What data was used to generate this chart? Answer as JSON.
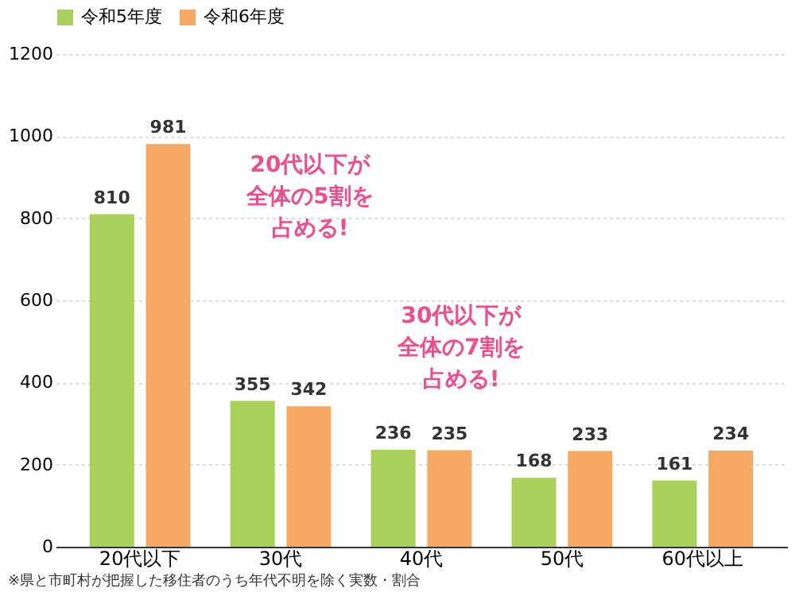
{
  "chart_data": {
    "type": "bar",
    "categories": [
      "20代以下",
      "30代",
      "40代",
      "50代",
      "60代以上"
    ],
    "series": [
      {
        "name": "令和5年度",
        "color": "#a8d05a",
        "values": [
          810,
          355,
          236,
          168,
          161
        ]
      },
      {
        "name": "令和6年度",
        "color": "#f5a965",
        "values": [
          981,
          342,
          235,
          233,
          234
        ]
      }
    ],
    "ylim": [
      0,
      1200
    ],
    "yticks": [
      0,
      200,
      400,
      600,
      800,
      1000,
      1200
    ],
    "grid": "y",
    "legend": "top",
    "data_labels": true,
    "annotations": [
      "20代以下が全体の5割を占める!",
      "30代以下が全体の7割を占める!",
      "※県と市町村が把握した移住者のうち年代不明を除く実数・割合"
    ]
  }
}
